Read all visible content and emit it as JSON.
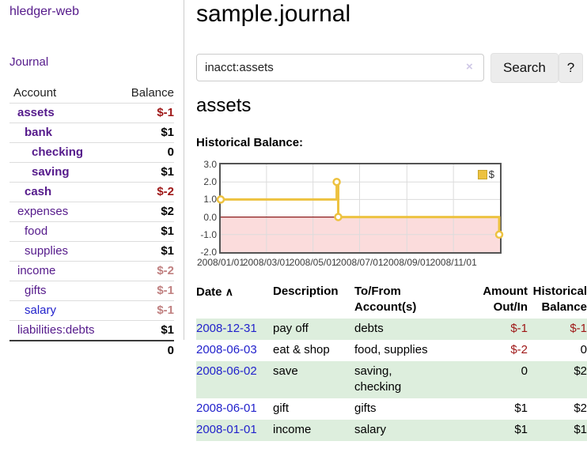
{
  "app": {
    "title": "hledger-web"
  },
  "nav": {
    "journal_label": "Journal"
  },
  "sidebar": {
    "header": {
      "account": "Account",
      "balance": "Balance"
    },
    "accounts": [
      {
        "name": "assets",
        "depth": 1,
        "balance": "$-1",
        "name_class": "bold",
        "bal_class": "neg"
      },
      {
        "name": "bank",
        "depth": 2,
        "balance": "$1",
        "name_class": "bold",
        "bal_class": ""
      },
      {
        "name": "checking",
        "depth": 3,
        "balance": "0",
        "name_class": "bold",
        "bal_class": ""
      },
      {
        "name": "saving",
        "depth": 3,
        "balance": "$1",
        "name_class": "bold",
        "bal_class": ""
      },
      {
        "name": "cash",
        "depth": 2,
        "balance": "$-2",
        "name_class": "bold",
        "bal_class": "neg"
      },
      {
        "name": "expenses",
        "depth": 1,
        "balance": "$2",
        "name_class": "",
        "bal_class": ""
      },
      {
        "name": "food",
        "depth": 2,
        "balance": "$1",
        "name_class": "",
        "bal_class": ""
      },
      {
        "name": "supplies",
        "depth": 2,
        "balance": "$1",
        "name_class": "",
        "bal_class": ""
      },
      {
        "name": "income",
        "depth": 1,
        "balance": "$-2",
        "name_class": "",
        "bal_class": "negsoft"
      },
      {
        "name": "gifts",
        "depth": 2,
        "balance": "$-1",
        "name_class": "",
        "bal_class": "negsoft"
      },
      {
        "name": "salary",
        "depth": 2,
        "balance": "$-1",
        "name_class": "blue",
        "bal_class": "negsoft"
      },
      {
        "name": "liabilities:debts",
        "depth": 1,
        "balance": "$1",
        "name_class": "",
        "bal_class": ""
      }
    ],
    "total": "0"
  },
  "main": {
    "title": "sample.journal",
    "search": {
      "value": "inacct:assets",
      "clear_icon": "×",
      "button_label": "Search",
      "help_label": "?"
    },
    "account_heading": "assets",
    "chart_label": "Historical Balance:"
  },
  "chart_data": {
    "type": "line",
    "step": true,
    "title": "Historical Balance:",
    "series": [
      {
        "name": "$",
        "color": "#edc240",
        "points": [
          [
            "2008-01-01",
            1
          ],
          [
            "2008-06-01",
            2
          ],
          [
            "2008-06-03",
            0
          ],
          [
            "2008-12-31",
            -1
          ]
        ]
      }
    ],
    "xlim": [
      "2008-01-01",
      "2009-01-01"
    ],
    "ylim": [
      -2,
      3
    ],
    "x_ticks": [
      {
        "label": "2008/01/01",
        "date": "2008-01-01"
      },
      {
        "label": "2008/03/01",
        "date": "2008-03-01"
      },
      {
        "label": "2008/05/01",
        "date": "2008-05-01"
      },
      {
        "label": "2008/07/01",
        "date": "2008-07-01"
      },
      {
        "label": "2008/09/01",
        "date": "2008-09-01"
      },
      {
        "label": "2008/11/01",
        "date": "2008-11-01"
      }
    ],
    "y_ticks": [
      "3.0",
      "2.0",
      "1.0",
      "0.0",
      "-1.0",
      "-2.0"
    ],
    "grid": true,
    "legend": {
      "position": "top-right",
      "label": "$",
      "swatch_color": "#edc240"
    },
    "negative_region_color": "#fbdcdc",
    "zero_line_color": "#8b1a1a",
    "grid_color": "#dcdcdc",
    "border_color": "#545454"
  },
  "register": {
    "columns": {
      "date": "Date",
      "description": "Description",
      "accounts": "To/From\nAccount(s)",
      "amount": "Amount\nOut/In",
      "balance": "Historical\nBalance"
    },
    "sort_icon": "∧",
    "rows": [
      {
        "date": "2008-12-31",
        "description": "pay off",
        "accounts": "debts",
        "amount": "$-1",
        "amount_neg": true,
        "balance": "$-1",
        "balance_neg": true,
        "shaded": true
      },
      {
        "date": "2008-06-03",
        "description": "eat & shop",
        "accounts": "food, supplies",
        "amount": "$-2",
        "amount_neg": true,
        "balance": "0",
        "balance_neg": false,
        "shaded": false
      },
      {
        "date": "2008-06-02",
        "description": "save",
        "accounts": "saving,\nchecking",
        "amount": "0",
        "amount_neg": false,
        "balance": "$2",
        "balance_neg": false,
        "shaded": true
      },
      {
        "date": "2008-06-01",
        "description": "gift",
        "accounts": "gifts",
        "amount": "$1",
        "amount_neg": false,
        "balance": "$2",
        "balance_neg": false,
        "shaded": false
      },
      {
        "date": "2008-01-01",
        "description": "income",
        "accounts": "salary",
        "amount": "$1",
        "amount_neg": false,
        "balance": "$1",
        "balance_neg": false,
        "shaded": true
      }
    ]
  },
  "colors": {
    "link_visited_purple": "#551a8b",
    "link_blue": "#2222cc",
    "negative_strong": "#9e1616",
    "negative_soft": "#c08080",
    "row_shade_green": "#ddeedd",
    "series_gold": "#edc240",
    "negative_region_pink": "#fbdcdc",
    "zero_line_red": "#8b1a1a",
    "button_gray": "#ececec"
  }
}
